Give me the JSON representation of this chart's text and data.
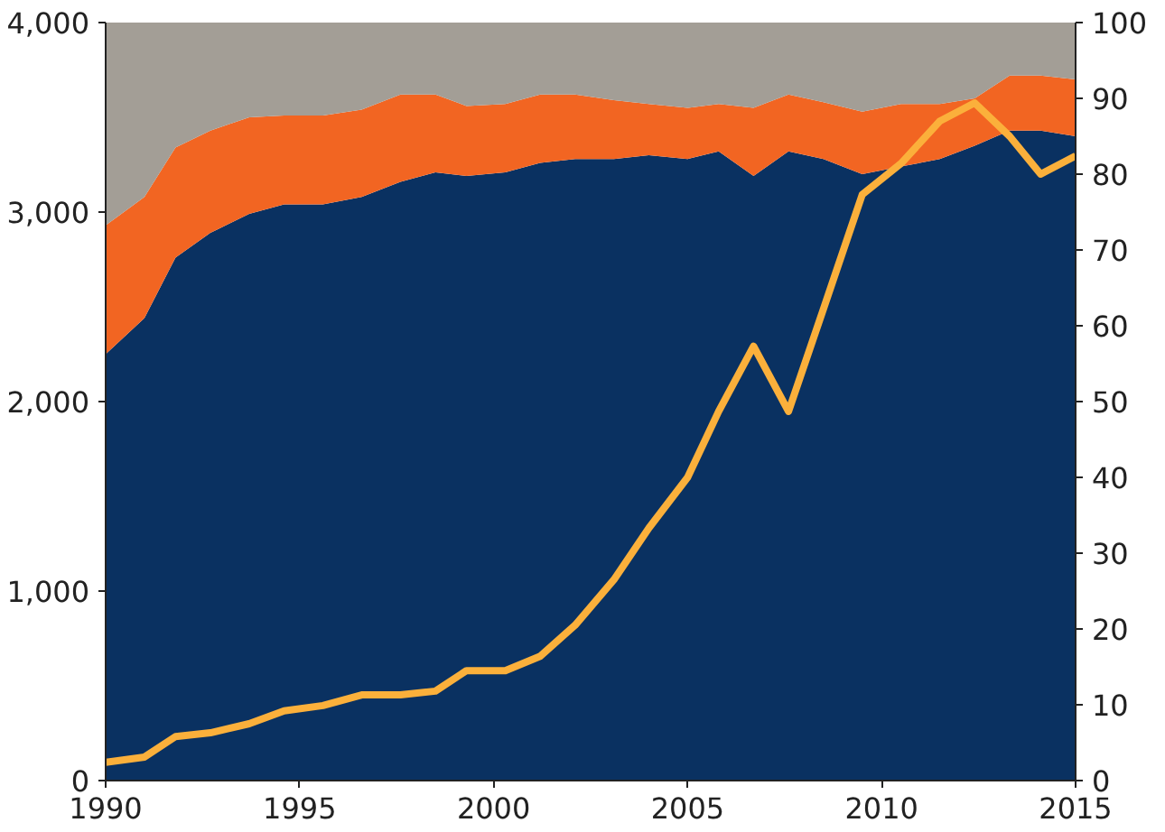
{
  "chart_data": {
    "type": "area",
    "stacked": true,
    "x": [
      1990.0,
      1991.0,
      1991.8,
      1992.7,
      1993.7,
      1994.6,
      1995.6,
      1996.6,
      1997.6,
      1998.5,
      1999.3,
      2000.3,
      2001.2,
      2002.1,
      2003.1,
      2004.0,
      2005.0,
      2005.8,
      2006.7,
      2007.6,
      2008.5,
      2009.5,
      2010.5,
      2011.5,
      2012.4,
      2013.3,
      2014.1,
      2015.0
    ],
    "series": [
      {
        "color": "#0a3161",
        "values": [
          2250,
          2440,
          2760,
          2890,
          2990,
          3040,
          3040,
          3080,
          3160,
          3210,
          3190,
          3210,
          3260,
          3280,
          3280,
          3300,
          3280,
          3320,
          3190,
          3320,
          3280,
          3200,
          3240,
          3280,
          3350,
          3430,
          3430,
          3400
        ]
      },
      {
        "color": "#f26522",
        "values": [
          680,
          640,
          580,
          540,
          510,
          470,
          470,
          460,
          460,
          410,
          370,
          360,
          360,
          340,
          310,
          270,
          270,
          250,
          360,
          300,
          300,
          330,
          330,
          290,
          250,
          290,
          290,
          300
        ]
      },
      {
        "color": "#a39e96",
        "values": [
          1070,
          920,
          660,
          570,
          500,
          490,
          490,
          460,
          380,
          380,
          440,
          430,
          380,
          380,
          410,
          430,
          450,
          430,
          450,
          380,
          420,
          470,
          430,
          430,
          400,
          280,
          280,
          300
        ]
      },
      {
        "type": "line",
        "axis": "y2",
        "color": "#fbb03b",
        "values": [
          2.4,
          3.1,
          5.8,
          6.3,
          7.5,
          9.2,
          9.9,
          11.3,
          11.3,
          11.8,
          14.5,
          14.5,
          16.4,
          20.5,
          26.5,
          33.3,
          40,
          48.7,
          57.3,
          48.7,
          62.2,
          77.3,
          81.4,
          87,
          89.4,
          85,
          80,
          82.4
        ]
      }
    ],
    "xlim": [
      1990,
      2015
    ],
    "xticks": [
      1990,
      1995,
      2000,
      2005,
      2010,
      2015
    ],
    "ylim": [
      0,
      4000
    ],
    "yticks": [
      {
        "value": 0,
        "label": "0"
      },
      {
        "value": 1000,
        "label": "1,000"
      },
      {
        "value": 2000,
        "label": "2,000"
      },
      {
        "value": 3000,
        "label": "3,000"
      },
      {
        "value": 4000,
        "label": "4,000"
      }
    ],
    "y2lim": [
      0,
      100
    ],
    "y2ticks": [
      0,
      10,
      20,
      30,
      40,
      50,
      60,
      70,
      80,
      90,
      100
    ],
    "grid": false
  }
}
